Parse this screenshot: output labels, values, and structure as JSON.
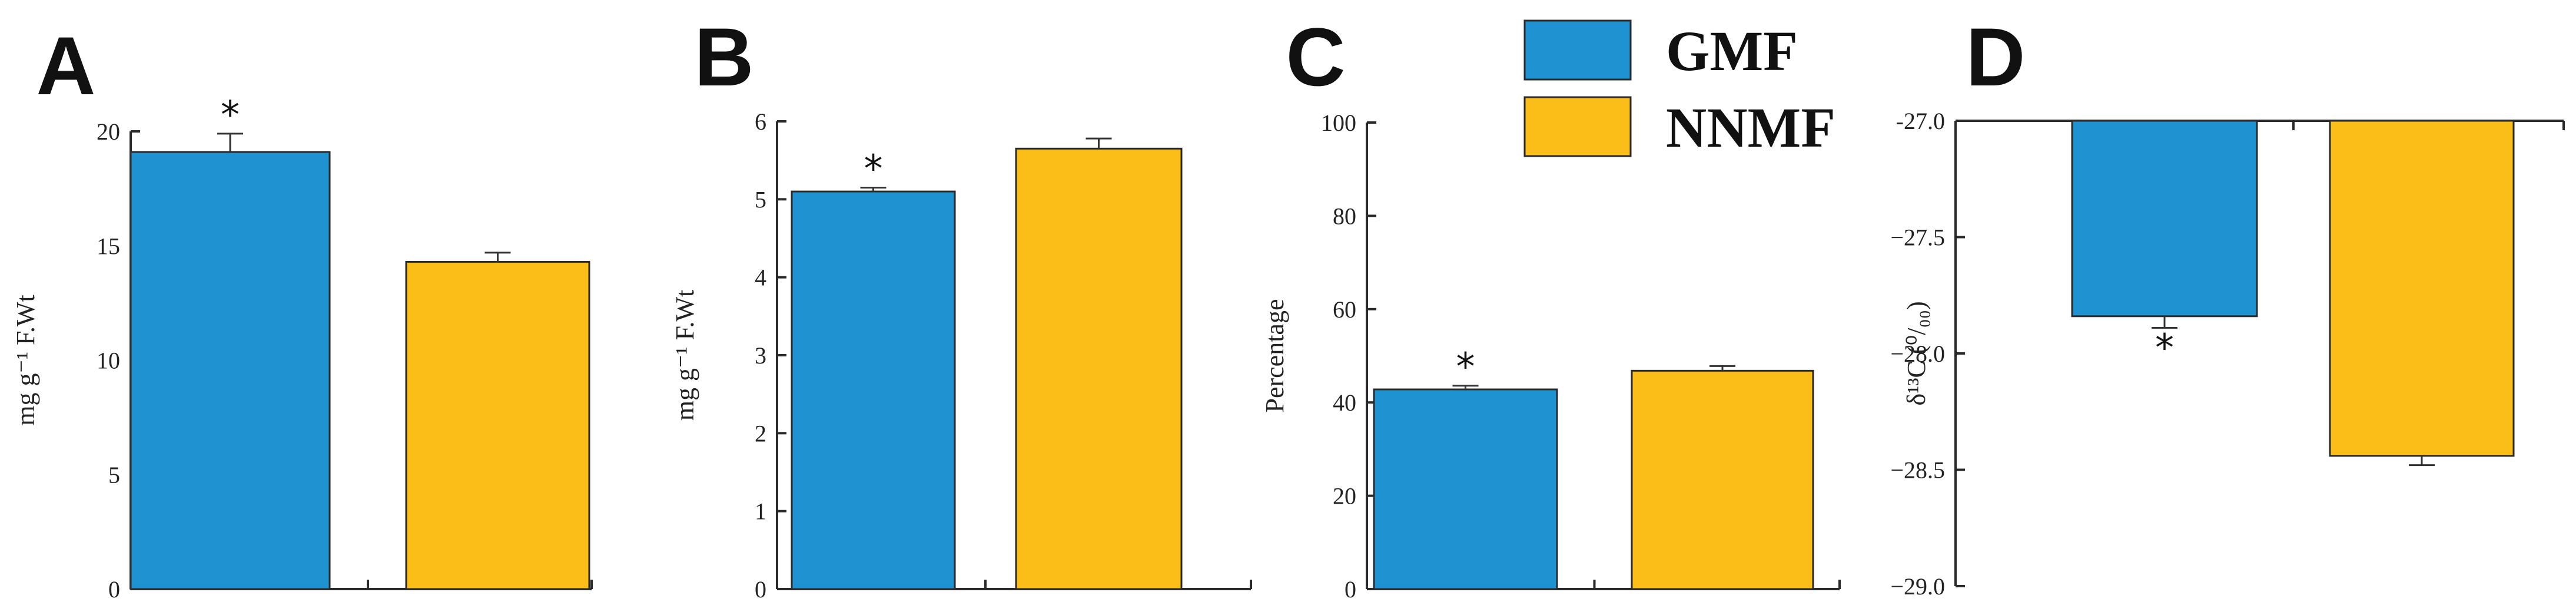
{
  "colors": {
    "GMF": "#1f93d2",
    "NNMF": "#fbbd17",
    "outline": "#2a2a2a"
  },
  "legend": {
    "items": [
      {
        "label": "GMF"
      },
      {
        "label": "NNMF"
      }
    ]
  },
  "chart_data": [
    {
      "panel": "A",
      "type": "bar",
      "ylabel": "mg g⁻¹ F.Wt",
      "ylim": [
        0,
        20
      ],
      "yticks": [
        0,
        5,
        10,
        15,
        20
      ],
      "categories": [
        "GMF",
        "NNMF"
      ],
      "values": [
        19.1,
        14.3
      ],
      "errors": [
        0.8,
        0.4
      ],
      "annotations": [
        "*",
        ""
      ]
    },
    {
      "panel": "B",
      "type": "bar",
      "ylabel": "mg g⁻¹ F.Wt",
      "ylim": [
        0,
        6
      ],
      "yticks": [
        0,
        1,
        2,
        3,
        4,
        5,
        6
      ],
      "categories": [
        "GMF",
        "NNMF"
      ],
      "values": [
        5.1,
        5.65
      ],
      "errors": [
        0.05,
        0.13
      ],
      "annotations": [
        "*",
        ""
      ]
    },
    {
      "panel": "C",
      "type": "bar",
      "ylabel": "Percentage",
      "ylim": [
        0,
        100
      ],
      "yticks": [
        0,
        20,
        40,
        60,
        80,
        100
      ],
      "categories": [
        "GMF",
        "NNMF"
      ],
      "values": [
        42.8,
        46.8
      ],
      "errors": [
        0.8,
        1.0
      ],
      "annotations": [
        "*",
        ""
      ]
    },
    {
      "panel": "D",
      "type": "bar",
      "ylabel": "δ¹³C (⁰/₀₀)",
      "ylim": [
        -29.0,
        -27.0
      ],
      "yticks": [
        -27.0,
        -27.5,
        -28.0,
        -28.5,
        -29.0
      ],
      "ytick_labels": [
        "-27.0",
        "−27.5",
        "−28.0",
        "−28.5",
        "−29.0"
      ],
      "categories": [
        "GMF",
        "NNMF"
      ],
      "values": [
        -27.84,
        -28.44
      ],
      "errors": [
        0.05,
        0.04
      ],
      "annotations": [
        "*",
        ""
      ]
    }
  ]
}
